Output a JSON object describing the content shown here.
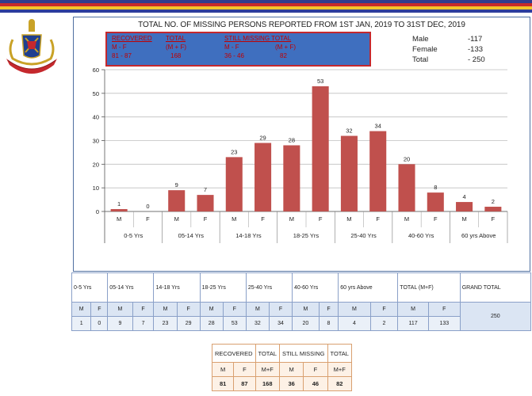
{
  "colors": {
    "bar": "#c0504d",
    "stripe1": "#2f3c8e",
    "stripe2": "#c72a2a",
    "stripe3": "#f2c42b",
    "stripe4": "#2c3d9c"
  },
  "emblem": {
    "icon": "police-emblem-icon"
  },
  "chart_data": {
    "type": "bar",
    "title": "TOTAL NO. OF MISSING PERSONS REPORTED FROM 1ST JAN, 2019 TO 31ST DEC, 2019",
    "ylim": [
      0,
      60
    ],
    "yticks": [
      0,
      10,
      20,
      30,
      40,
      50,
      60
    ],
    "grid": true,
    "groups": [
      "0-5 Yrs",
      "05-14 Yrs",
      "14-18 Yrs",
      "18-25 Yrs",
      "25-40 Yrs",
      "40-60 Yrs",
      "60 yrs Above"
    ],
    "sub_categories": [
      "M",
      "F"
    ],
    "values": [
      1,
      0,
      9,
      7,
      23,
      29,
      28,
      53,
      32,
      34,
      20,
      8,
      4,
      2
    ]
  },
  "recovered_box": {
    "headers": [
      "RECOVERED",
      "TOTAL",
      "STILL MISSING TOTAL"
    ],
    "row2": [
      "M   -  F",
      "(M  + F)",
      "M  - F",
      "(M + F)"
    ],
    "row3": [
      "81  -  87",
      "168",
      "36  -  46",
      "82"
    ]
  },
  "totals": [
    {
      "label": "Male",
      "value": "-117"
    },
    {
      "label": "Female",
      "value": "-133"
    },
    {
      "label": "Total",
      "value": "- 250"
    }
  ],
  "table": {
    "groups": [
      "0-5 Yrs",
      "05-14 Yrs",
      "14-18 Yrs",
      "18-25 Yrs",
      "25-40 Yrs",
      "40-60 Yrs",
      "60 yrs Above",
      "TOTAL (M+F)"
    ],
    "grand_label": "GRAND TOTAL",
    "mf": [
      "M",
      "F"
    ],
    "values": [
      "1",
      "0",
      "9",
      "7",
      "23",
      "29",
      "28",
      "53",
      "32",
      "34",
      "20",
      "8",
      "4",
      "2",
      "117",
      "133"
    ],
    "grand_total": "250"
  },
  "summary": {
    "headers": [
      "RECOVERED",
      "TOTAL",
      "STILL MISSING",
      "TOTAL"
    ],
    "sub": [
      "M",
      "F",
      "M+F",
      "M",
      "F",
      "M+F"
    ],
    "values": [
      "81",
      "87",
      "168",
      "36",
      "46",
      "82"
    ]
  }
}
